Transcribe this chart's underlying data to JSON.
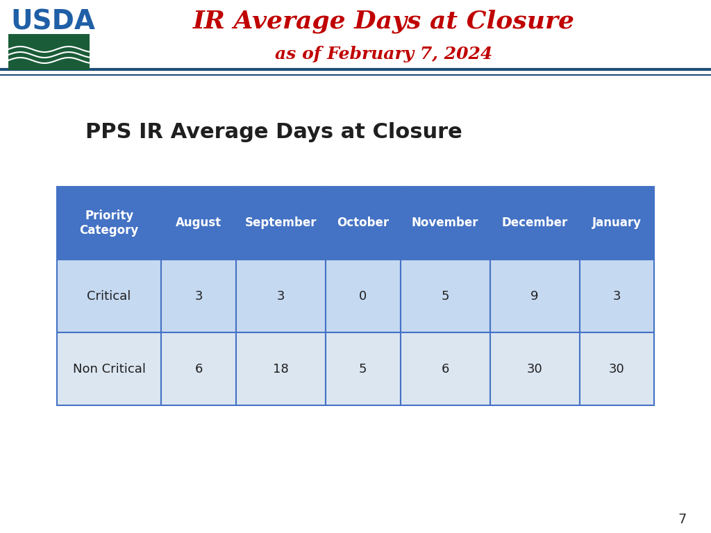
{
  "title_main": "IR Average Days at Closure",
  "title_sub": "as of February 7, 2024",
  "slide_title": "PPS IR Average Days at Closure",
  "page_number": "7",
  "header_bg": "#d6e4f0",
  "header_line_color": "#1f4e79",
  "header_title_color": "#c00000",
  "header_subtitle_color": "#c00000",
  "slide_bg": "#ffffff",
  "table_header_bg": "#4472c4",
  "table_header_text": "#ffffff",
  "table_row1_bg": "#c5d9f1",
  "table_row2_bg": "#dce6f1",
  "table_border_color": "#4472c4",
  "table_text_color": "#1f1f1f",
  "columns": [
    "Priority\nCategory",
    "August",
    "September",
    "October",
    "November",
    "December",
    "January"
  ],
  "rows": [
    [
      "Critical",
      "3",
      "3",
      "0",
      "5",
      "9",
      "3"
    ],
    [
      "Non Critical",
      "6",
      "18",
      "5",
      "6",
      "30",
      "30"
    ]
  ],
  "slide_title_color": "#1f1f1f",
  "slide_title_fontsize": 22,
  "usda_logo_green": "#1a5c38",
  "usda_logo_blue": "#1f4e79"
}
